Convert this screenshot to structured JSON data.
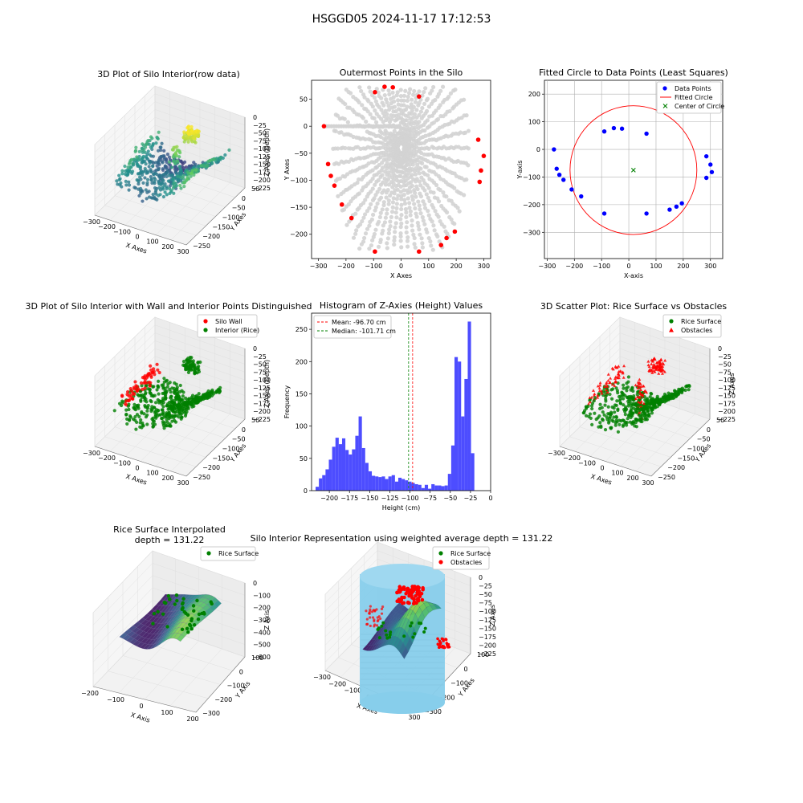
{
  "figure": {
    "suptitle": "HSGGD05 2024-11-17 17:12:53",
    "colors": {
      "blue": "#0000ff",
      "red": "#ff0000",
      "green": "#008000",
      "gray_points": "#d3d3d3",
      "hist_bar": "#4d4dff",
      "cyl": "#87ceeb",
      "grid": "#b0b0b0",
      "pane": "#f2f2f2"
    }
  },
  "chart_data": [
    {
      "id": "p1",
      "type": "scatter3d",
      "title": "3D Plot of Silo Interior(row data)",
      "xlabel": "X Axes",
      "ylabel": "Y Axes",
      "zlabel": "Z Axes (Depth)",
      "xticks": [
        "−300",
        "−200",
        "−100",
        "0",
        "100",
        "200",
        "300"
      ],
      "yticks": [
        "50",
        "0",
        "−50",
        "−100",
        "−150",
        "−200",
        "−250"
      ],
      "zticks": [
        "0",
        "−25",
        "−50",
        "−75",
        "−100",
        "−125",
        "−150",
        "−175",
        "−200",
        "−225"
      ],
      "colormap": "viridis"
    },
    {
      "id": "p2",
      "type": "scatter",
      "title": "Outermost Points in the Silo",
      "xlabel": "X Axes",
      "ylabel": "Y Axes",
      "xlim": [
        -325,
        325
      ],
      "ylim": [
        -245,
        85
      ],
      "xticks": [
        -300,
        -200,
        -100,
        0,
        100,
        200,
        300
      ],
      "yticks": [
        50,
        0,
        -50,
        -100,
        -150,
        -200
      ],
      "outer_points": [
        [
          -280,
          0
        ],
        [
          -265,
          -70
        ],
        [
          -255,
          -92
        ],
        [
          -242,
          -110
        ],
        [
          -215,
          -145
        ],
        [
          -180,
          -170
        ],
        [
          -95,
          -232
        ],
        [
          -95,
          63
        ],
        [
          -60,
          73
        ],
        [
          -30,
          72
        ],
        [
          65,
          -232
        ],
        [
          65,
          55
        ],
        [
          145,
          -220
        ],
        [
          165,
          -207
        ],
        [
          195,
          -195
        ],
        [
          280,
          -25
        ],
        [
          300,
          -55
        ],
        [
          290,
          -82
        ],
        [
          285,
          -103
        ]
      ]
    },
    {
      "id": "p3",
      "type": "scatter",
      "title": "Fitted Circle to Data Points (Least Squares)",
      "xlabel": "X-axis",
      "ylabel": "Y-axis",
      "xlim": [
        -310,
        345
      ],
      "ylim": [
        -395,
        250
      ],
      "xticks": [
        -300,
        -200,
        -100,
        0,
        100,
        200,
        300
      ],
      "yticks": [
        200,
        100,
        0,
        -100,
        -200,
        -300
      ],
      "legend": [
        "Data Points",
        "Fitted Circle",
        "Center of Circle"
      ],
      "data_points": [
        [
          -275,
          0
        ],
        [
          -265,
          -70
        ],
        [
          -255,
          -92
        ],
        [
          -240,
          -110
        ],
        [
          -210,
          -145
        ],
        [
          -175,
          -170
        ],
        [
          -90,
          65
        ],
        [
          -55,
          77
        ],
        [
          -25,
          75
        ],
        [
          -90,
          -232
        ],
        [
          65,
          57
        ],
        [
          65,
          -232
        ],
        [
          150,
          -218
        ],
        [
          175,
          -207
        ],
        [
          195,
          -195
        ],
        [
          285,
          -25
        ],
        [
          300,
          -55
        ],
        [
          305,
          -82
        ],
        [
          285,
          -103
        ]
      ],
      "circle": {
        "cx": 17,
        "cy": -75,
        "r": 233
      }
    },
    {
      "id": "p4",
      "type": "scatter3d",
      "title": "3D Plot of Silo Interior with Wall and Interior Points Distinguished",
      "xlabel": "X Axes",
      "ylabel": "Y Axes",
      "zlabel": "Z Axes (Depth)",
      "xticks": [
        "−300",
        "−200",
        "−100",
        "0",
        "100",
        "200",
        "300"
      ],
      "yticks": [
        "50",
        "0",
        "−50",
        "−100",
        "−150",
        "−200",
        "−250"
      ],
      "zticks": [
        "0",
        "−25",
        "−50",
        "−75",
        "−100",
        "−125",
        "−150",
        "−175",
        "−200",
        "−225"
      ],
      "legend": [
        "Silo Wall",
        "Interior (Rice)"
      ]
    },
    {
      "id": "p5",
      "type": "bar",
      "title": "Histogram of Z-Axies (Height) Values",
      "xlabel": "Height (cm)",
      "ylabel": "Frequency",
      "xlim": [
        -222,
        0
      ],
      "ylim": [
        0,
        275
      ],
      "xticks": [
        -200,
        -175,
        -150,
        -125,
        -100,
        -75,
        -50,
        -25,
        0
      ],
      "yticks": [
        0,
        50,
        100,
        150,
        200,
        250
      ],
      "bin_start": -217,
      "bin_width": 4.1,
      "values": [
        6,
        19,
        24,
        33,
        48,
        68,
        82,
        72,
        81,
        63,
        56,
        64,
        85,
        115,
        66,
        43,
        30,
        23,
        22,
        21,
        22,
        18,
        22,
        24,
        14,
        20,
        18,
        16,
        14,
        12,
        10,
        9,
        4,
        9,
        3,
        10,
        8,
        8,
        7,
        8,
        26,
        70,
        207,
        200,
        115,
        173,
        262,
        58
      ],
      "mean": -96.7,
      "median": -101.71,
      "legend": [
        "Mean: -96.70 cm",
        "Median: -101.71 cm"
      ]
    },
    {
      "id": "p6",
      "type": "scatter3d",
      "title": "3D Scatter Plot: Rice Surface vs Obstacles",
      "xlabel": "X Axes",
      "ylabel": "Y Axes",
      "zlabel": "Z Axes",
      "xticks": [
        "−300",
        "−200",
        "−100",
        "0",
        "100",
        "200",
        "300"
      ],
      "yticks": [
        "50",
        "0",
        "−50",
        "−100",
        "−150",
        "−200",
        "−250"
      ],
      "zticks": [
        "0",
        "−25",
        "−50",
        "−75",
        "−100",
        "−125",
        "−150",
        "−175",
        "−200",
        "−225"
      ],
      "legend": [
        "Rice Surface",
        "Obstacles"
      ]
    },
    {
      "id": "p7",
      "type": "surface3d",
      "title": "Rice Surface Interpolated",
      "subtitle": "depth = 131.22",
      "xlabel": "X Axis",
      "ylabel": "Y Axis",
      "zlabel": "Z Axis",
      "xticks": [
        "−200",
        "−100",
        "0",
        "100",
        "200"
      ],
      "yticks": [
        "100",
        "0",
        "−100",
        "−200",
        "−300"
      ],
      "zticks": [
        "0",
        "−100",
        "−200",
        "−300",
        "−400",
        "−500",
        "−600"
      ],
      "legend": [
        "Rice Surface"
      ]
    },
    {
      "id": "p8",
      "type": "surface3d",
      "title": "Silo Interior Representation using weighted average depth = 131.22",
      "xlabel": "X Axes",
      "ylabel": "Y Axes",
      "zlabel": "Z Axes",
      "xticks": [
        "−300",
        "−200",
        "−100",
        "0",
        "100",
        "200",
        "300"
      ],
      "yticks": [
        "100",
        "0",
        "−100",
        "−200",
        "−300"
      ],
      "zticks": [
        "0",
        "−25",
        "−50",
        "−75",
        "−100",
        "−125",
        "−150",
        "−175",
        "−200",
        "−225"
      ],
      "legend": [
        "Rice Surface",
        "Obstacles"
      ]
    }
  ]
}
